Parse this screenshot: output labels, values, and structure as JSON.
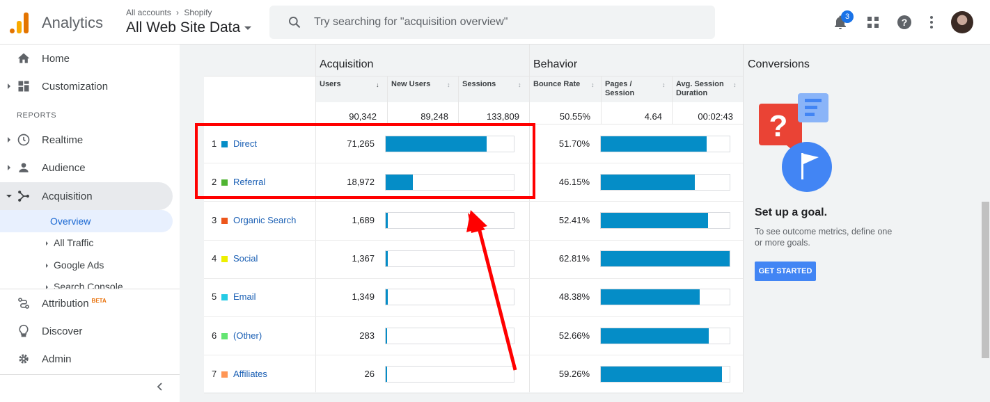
{
  "header": {
    "app_name": "Analytics",
    "breadcrumb_all": "All accounts",
    "breadcrumb_property": "Shopify",
    "view_name": "All Web Site Data",
    "search_placeholder": "Try searching for \"acquisition overview\"",
    "notification_count": "3",
    "icons": [
      "bell-icon",
      "apps-grid-icon",
      "help-icon",
      "more-vert-icon"
    ]
  },
  "sidebar": {
    "items": [
      {
        "label": "Home",
        "icon": "home-icon"
      },
      {
        "label": "Customization",
        "icon": "dashboard-icon"
      }
    ],
    "reports_label": "REPORTS",
    "reports": [
      {
        "label": "Realtime",
        "icon": "clock-icon"
      },
      {
        "label": "Audience",
        "icon": "person-icon"
      },
      {
        "label": "Acquisition",
        "icon": "acquisition-icon"
      }
    ],
    "acquisition_sub": {
      "active": "Overview",
      "items": [
        "All Traffic",
        "Google Ads",
        "Search Console"
      ]
    },
    "bottom": [
      {
        "label": "Attribution",
        "icon": "attribution-icon",
        "badge": "BETA"
      },
      {
        "label": "Discover",
        "icon": "lightbulb-icon"
      },
      {
        "label": "Admin",
        "icon": "gear-icon"
      }
    ]
  },
  "table": {
    "groups": {
      "acquisition": "Acquisition",
      "behavior": "Behavior",
      "conversions": "Conversions"
    },
    "columns": {
      "users": "Users",
      "new_users": "New Users",
      "sessions": "Sessions",
      "bounce_rate": "Bounce Rate",
      "pages_session_1": "Pages /",
      "pages_session_2": "Session",
      "avg_duration_1": "Avg. Session",
      "avg_duration_2": "Duration"
    },
    "totals": {
      "users": "90,342",
      "new_users": "89,248",
      "sessions": "133,809",
      "bounce_rate": "50.55%",
      "pages_session": "4.64",
      "avg_duration": "00:02:43"
    },
    "rows": [
      {
        "rank": "1",
        "channel": "Direct",
        "color": "#058dc7",
        "users": "71,265",
        "users_share": 0.79,
        "bounce": "51.70%",
        "bounce_share": 0.82
      },
      {
        "rank": "2",
        "channel": "Referral",
        "color": "#50b432",
        "users": "18,972",
        "users_share": 0.21,
        "bounce": "46.15%",
        "bounce_share": 0.73
      },
      {
        "rank": "3",
        "channel": "Organic Search",
        "color": "#ed561b",
        "users": "1,689",
        "users_share": 0.019,
        "bounce": "52.41%",
        "bounce_share": 0.83
      },
      {
        "rank": "4",
        "channel": "Social",
        "color": "#edef00",
        "users": "1,367",
        "users_share": 0.015,
        "bounce": "62.81%",
        "bounce_share": 1.0
      },
      {
        "rank": "5",
        "channel": "Email",
        "color": "#24cbe5",
        "users": "1,349",
        "users_share": 0.015,
        "bounce": "48.38%",
        "bounce_share": 0.77
      },
      {
        "rank": "6",
        "channel": "(Other)",
        "color": "#64e572",
        "users": "283",
        "users_share": 0.003,
        "bounce": "52.66%",
        "bounce_share": 0.84
      },
      {
        "rank": "7",
        "channel": "Affiliates",
        "color": "#ff9655",
        "users": "26",
        "users_share": 0.0003,
        "bounce": "59.26%",
        "bounce_share": 0.94
      }
    ]
  },
  "conversions": {
    "goal_title": "Set up a goal.",
    "goal_text": "To see outcome metrics, define one or more goals.",
    "button_label": "GET STARTED"
  },
  "colors": {
    "bar": "#058dc7",
    "highlight": "#ff0000",
    "accent": "#1a73e8"
  }
}
